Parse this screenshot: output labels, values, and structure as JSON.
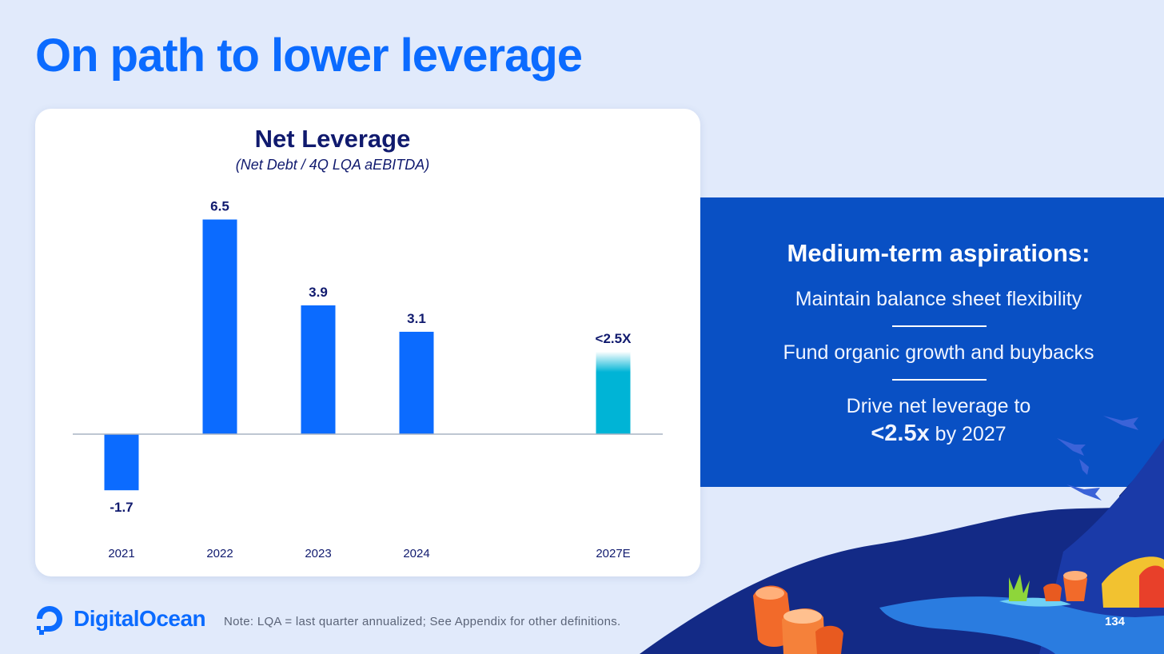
{
  "page": {
    "title": "On path to lower leverage",
    "brand": "DigitalOcean",
    "footnote": "Note: LQA = last quarter annualized; See Appendix for other definitions.",
    "page_number": "134"
  },
  "aspirations": {
    "heading": "Medium-term aspirations:",
    "item1": "Maintain balance sheet flexibility",
    "item2": "Fund organic growth and buybacks",
    "item3_line1": "Drive net leverage to",
    "item3_strong": "<2.5x",
    "item3_rest": " by 2027"
  },
  "colors": {
    "brand_blue": "#0b6bff",
    "title_navy": "#101a6e",
    "panel_blue": "#0950c4",
    "target_teal": "#00b4d6"
  },
  "chart_data": {
    "type": "bar",
    "title": "Net Leverage",
    "subtitle": "(Net Debt / 4Q LQA aEBITDA)",
    "xlabel": "",
    "ylabel": "",
    "categories": [
      "2021",
      "2022",
      "2023",
      "2024",
      "2027E"
    ],
    "values": [
      -1.7,
      6.5,
      3.9,
      3.1,
      2.5
    ],
    "data_labels": [
      "-1.7",
      "6.5",
      "3.9",
      "3.1",
      "<2.5X"
    ],
    "target_category": "2027E",
    "ylim": [
      -1.7,
      6.5
    ],
    "grid": false,
    "legend": "none"
  }
}
